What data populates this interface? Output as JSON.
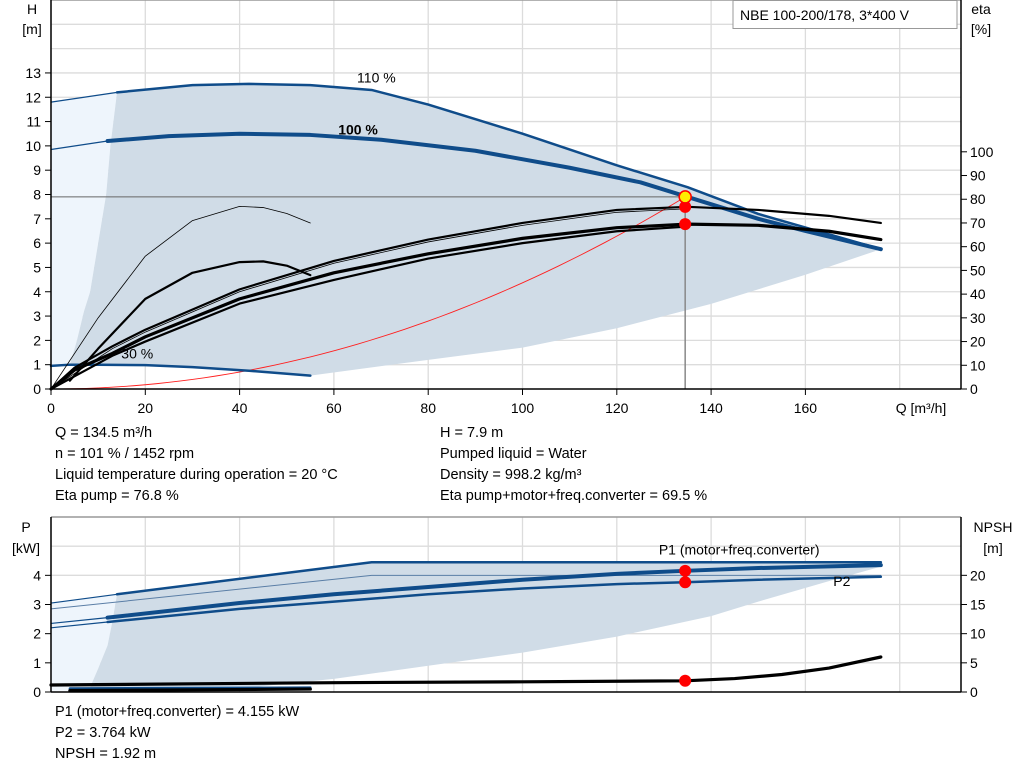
{
  "title": "NBE 100-200/178, 3*400 V",
  "colors": {
    "curve_blue": "#0f4c8a",
    "envelope": "#d0dce7",
    "envelope_light": "#eef5fc",
    "system_curve": "#ff2020",
    "duty_point": "#ffee00",
    "marker": "#ff0000"
  },
  "chart_data": [
    {
      "type": "line",
      "title": "",
      "xlabel": "Q [m³/h]",
      "ylabel": "H\n[m]",
      "ylabel_line1": "H",
      "ylabel_line2": "[m]",
      "y2label_line1": "eta",
      "y2label_line2": "[%]",
      "xlim": [
        0,
        193
      ],
      "ylim": [
        0,
        16
      ],
      "y2lim": [
        0,
        164
      ],
      "xticks": [
        0,
        20,
        40,
        60,
        80,
        100,
        120,
        140,
        160
      ],
      "yticks": [
        0,
        1,
        2,
        3,
        4,
        5,
        6,
        7,
        8,
        9,
        10,
        11,
        12,
        13
      ],
      "y2ticks": [
        0,
        10,
        20,
        30,
        40,
        50,
        60,
        70,
        80,
        90,
        100
      ],
      "grid": true,
      "annotations": [
        {
          "text": "110 %",
          "q": 70,
          "h": 12.45
        },
        {
          "text": "100 %",
          "q": 66,
          "h": 10.3
        },
        {
          "text": "30 %",
          "q": 20,
          "h": 1.1
        }
      ],
      "envelope_dark": [
        [
          14,
          12.2
        ],
        [
          30,
          12.5
        ],
        [
          42,
          12.55
        ],
        [
          55,
          12.5
        ],
        [
          68,
          12.3
        ],
        [
          80,
          11.7
        ],
        [
          100,
          10.5
        ],
        [
          120,
          9.2
        ],
        [
          135,
          8.3
        ],
        [
          150,
          7.2
        ],
        [
          176,
          5.75
        ],
        [
          160,
          4.7
        ],
        [
          140,
          3.5
        ],
        [
          120,
          2.5
        ],
        [
          100,
          1.7
        ],
        [
          80,
          1.2
        ],
        [
          55,
          0.55
        ],
        [
          42,
          0.75
        ],
        [
          30,
          0.9
        ],
        [
          20,
          0.98
        ],
        [
          10,
          1.0
        ],
        [
          4,
          1.0
        ],
        [
          5.5,
          2
        ],
        [
          7,
          3.2
        ],
        [
          8.3,
          4
        ],
        [
          10,
          6
        ],
        [
          11.7,
          8
        ],
        [
          12.6,
          10
        ],
        [
          14,
          12.2
        ]
      ],
      "envelope_light": [
        [
          0,
          11.8
        ],
        [
          14,
          12.2
        ],
        [
          12.6,
          10
        ],
        [
          11.7,
          8
        ],
        [
          10,
          6
        ],
        [
          8.3,
          4
        ],
        [
          7,
          3.2
        ],
        [
          5.5,
          2
        ],
        [
          4,
          1.0
        ],
        [
          0,
          0.95
        ]
      ],
      "series": [
        {
          "axis": "H",
          "style": "blue-thin",
          "points": [
            [
              0,
              11.8
            ],
            [
              14,
              12.2
            ]
          ]
        },
        {
          "axis": "H",
          "style": "blue-mid",
          "points": [
            [
              14,
              12.2
            ],
            [
              30,
              12.5
            ],
            [
              42,
              12.55
            ],
            [
              55,
              12.5
            ],
            [
              68,
              12.3
            ],
            [
              80,
              11.7
            ],
            [
              100,
              10.5
            ],
            [
              120,
              9.2
            ],
            [
              135,
              8.3
            ],
            [
              150,
              7.2
            ],
            [
              176,
              5.75
            ]
          ]
        },
        {
          "axis": "H",
          "style": "blue-thin",
          "points": [
            [
              0,
              9.85
            ],
            [
              12,
              10.2
            ]
          ]
        },
        {
          "axis": "H",
          "style": "blue-thick",
          "points": [
            [
              12,
              10.2
            ],
            [
              25,
              10.4
            ],
            [
              40,
              10.5
            ],
            [
              55,
              10.45
            ],
            [
              70,
              10.25
            ],
            [
              90,
              9.8
            ],
            [
              110,
              9.1
            ],
            [
              125,
              8.5
            ],
            [
              135,
              7.9
            ],
            [
              150,
              7.0
            ],
            [
              160,
              6.5
            ],
            [
              176,
              5.75
            ]
          ]
        },
        {
          "axis": "H",
          "style": "blue-mid",
          "points": [
            [
              0,
              0.95
            ],
            [
              4,
              1.0
            ],
            [
              10,
              1.0
            ],
            [
              20,
              0.98
            ],
            [
              30,
              0.9
            ],
            [
              42,
              0.75
            ],
            [
              55,
              0.55
            ]
          ]
        },
        {
          "axis": "eta",
          "style": "black-mid",
          "points": [
            [
              0,
              0
            ],
            [
              5,
              9
            ],
            [
              13,
              18
            ],
            [
              20,
              25
            ],
            [
              40,
              42
            ],
            [
              60,
              54
            ],
            [
              80,
              63
            ],
            [
              100,
              70
            ],
            [
              120,
              75.5
            ],
            [
              135,
              76.8
            ],
            [
              150,
              75.5
            ],
            [
              165,
              73
            ],
            [
              176,
              70
            ]
          ]
        },
        {
          "axis": "eta",
          "style": "black-hair",
          "points": [
            [
              0,
              0
            ],
            [
              13,
              17
            ],
            [
              20,
              24
            ],
            [
              40,
              41
            ],
            [
              60,
              53
            ],
            [
              80,
              62
            ],
            [
              100,
              69
            ],
            [
              120,
              74.5
            ],
            [
              135,
              76
            ]
          ]
        },
        {
          "axis": "eta",
          "style": "black-thick",
          "points": [
            [
              0,
              0
            ],
            [
              5,
              8
            ],
            [
              13,
              15
            ],
            [
              20,
              22
            ],
            [
              40,
              38
            ],
            [
              60,
              49
            ],
            [
              80,
              57
            ],
            [
              100,
              63.5
            ],
            [
              120,
              68
            ],
            [
              135,
              69.5
            ],
            [
              150,
              69
            ],
            [
              165,
              66.5
            ],
            [
              176,
              63
            ]
          ]
        },
        {
          "axis": "eta",
          "style": "black-mid",
          "points": [
            [
              0,
              0
            ],
            [
              13,
              14
            ],
            [
              20,
              20
            ],
            [
              40,
              36
            ],
            [
              60,
              46
            ],
            [
              80,
              55
            ],
            [
              100,
              61.5
            ],
            [
              120,
              66.5
            ],
            [
              135,
              68.5
            ]
          ]
        },
        {
          "axis": "eta",
          "style": "black-mid",
          "points": [
            [
              4,
              3.5
            ],
            [
              10,
              17
            ],
            [
              20,
              38
            ],
            [
              30,
              49
            ],
            [
              40,
              53.5
            ],
            [
              45,
              53.8
            ],
            [
              50,
              52
            ],
            [
              55,
              48
            ]
          ]
        },
        {
          "axis": "eta",
          "style": "black-hair",
          "points": [
            [
              0,
              0
            ],
            [
              10,
              30
            ],
            [
              20,
              56
            ],
            [
              30,
              71
            ],
            [
              40,
              77
            ],
            [
              45,
              76.5
            ],
            [
              50,
              74
            ],
            [
              55,
              70
            ]
          ]
        }
      ],
      "system_curve": {
        "axis": "H",
        "coefficient_note": "",
        "q_end": 134.5,
        "h_end": 7.9
      },
      "duty_point": {
        "q": 134.5,
        "h": 7.9
      },
      "markers": [
        {
          "axis": "eta",
          "q": 134.5,
          "value": 76.8
        },
        {
          "axis": "eta",
          "q": 134.5,
          "value": 69.5
        }
      ]
    },
    {
      "type": "line",
      "title": "",
      "ylabel_line1": "P",
      "ylabel_line2": "[kW]",
      "y2label_line1": "NPSH",
      "y2label_line2": "[m]",
      "xlim": [
        0,
        193
      ],
      "ylim": [
        0,
        6
      ],
      "y2lim": [
        0,
        30
      ],
      "xticks": [
        0,
        20,
        40,
        60,
        80,
        100,
        120,
        140,
        160
      ],
      "yticks": [
        0,
        1,
        2,
        3,
        4
      ],
      "y2ticks": [
        0,
        5,
        10,
        15,
        20
      ],
      "grid": true,
      "annotations": [
        {
          "text": "P1 (motor+freq.converter)",
          "q": 134,
          "p": 4.58
        },
        {
          "text": "P2",
          "q": 171,
          "p": 3.5
        }
      ],
      "envelope_dark": [
        [
          14,
          3.35
        ],
        [
          68,
          4.45
        ],
        [
          176,
          4.45
        ],
        [
          176,
          4.3
        ],
        [
          165,
          3.8
        ],
        [
          150,
          3.1
        ],
        [
          140,
          2.6
        ],
        [
          120,
          1.9
        ],
        [
          100,
          1.35
        ],
        [
          80,
          0.9
        ],
        [
          60,
          0.45
        ],
        [
          40,
          0.12
        ],
        [
          20,
          0.05
        ],
        [
          8,
          0.05
        ],
        [
          10,
          0.8
        ],
        [
          12,
          1.6
        ],
        [
          13,
          2.4
        ],
        [
          14,
          3.35
        ]
      ],
      "envelope_light": [
        [
          0,
          3.05
        ],
        [
          14,
          3.35
        ],
        [
          13,
          2.4
        ],
        [
          12,
          1.6
        ],
        [
          10,
          0.8
        ],
        [
          8,
          0.05
        ],
        [
          0,
          0.05
        ]
      ],
      "series": [
        {
          "axis": "P",
          "style": "blue-thin",
          "points": [
            [
              0,
              3.05
            ],
            [
              14,
              3.35
            ]
          ]
        },
        {
          "axis": "P",
          "style": "blue-mid",
          "points": [
            [
              14,
              3.35
            ],
            [
              68,
              4.45
            ],
            [
              176,
              4.45
            ]
          ]
        },
        {
          "axis": "P",
          "style": "blue-hair",
          "points": [
            [
              0,
              2.85
            ],
            [
              68,
              4.0
            ],
            [
              176,
              4.0
            ]
          ]
        },
        {
          "axis": "P",
          "style": "blue-thin",
          "points": [
            [
              0,
              2.35
            ],
            [
              12,
              2.55
            ]
          ]
        },
        {
          "axis": "P",
          "style": "blue-thick",
          "name": "P1 (motor+freq.converter)",
          "points": [
            [
              12,
              2.55
            ],
            [
              40,
              3.05
            ],
            [
              60,
              3.35
            ],
            [
              80,
              3.6
            ],
            [
              100,
              3.85
            ],
            [
              120,
              4.05
            ],
            [
              134.5,
              4.155
            ],
            [
              150,
              4.25
            ],
            [
              176,
              4.35
            ]
          ]
        },
        {
          "axis": "P",
          "style": "blue-thin",
          "points": [
            [
              0,
              2.2
            ],
            [
              12,
              2.4
            ]
          ]
        },
        {
          "axis": "P",
          "style": "blue-mid",
          "name": "P2",
          "points": [
            [
              12,
              2.4
            ],
            [
              40,
              2.85
            ],
            [
              60,
              3.1
            ],
            [
              80,
              3.35
            ],
            [
              100,
              3.55
            ],
            [
              120,
              3.7
            ],
            [
              134.5,
              3.764
            ],
            [
              150,
              3.85
            ],
            [
              176,
              3.95
            ]
          ]
        },
        {
          "axis": "P",
          "style": "blue-mid",
          "points": [
            [
              4,
              0.12
            ],
            [
              55,
              0.15
            ]
          ]
        },
        {
          "axis": "P",
          "style": "black-thin",
          "points": [
            [
              0,
              0.25
            ],
            [
              55,
              0.3
            ]
          ]
        },
        {
          "axis": "P",
          "style": "black-thick",
          "points": [
            [
              4,
              0.05
            ],
            [
              55,
              0.1
            ]
          ]
        },
        {
          "axis": "NPSH",
          "style": "black-thick",
          "points": [
            [
              0,
              1.2
            ],
            [
              30,
              1.4
            ],
            [
              60,
              1.6
            ],
            [
              100,
              1.75
            ],
            [
              134.5,
              1.92
            ],
            [
              145,
              2.3
            ],
            [
              155,
              3.0
            ],
            [
              165,
              4.1
            ],
            [
              176,
              6.0
            ]
          ]
        }
      ],
      "markers": [
        {
          "axis": "P",
          "q": 134.5,
          "value": 4.155
        },
        {
          "axis": "P",
          "q": 134.5,
          "value": 3.764
        },
        {
          "axis": "NPSH",
          "q": 134.5,
          "value": 1.92
        }
      ]
    }
  ],
  "info": {
    "q": "Q = 134.5 m³/h",
    "n": "n = 101 % / 1452 rpm",
    "temp": "Liquid temperature during operation = 20 °C",
    "eta_pump": "Eta pump = 76.8 %",
    "h": "H = 7.9 m",
    "liquid": "Pumped liquid = Water",
    "density": "Density = 998.2 kg/m³",
    "eta_total": "Eta pump+motor+freq.converter = 69.5 %",
    "p1": "P1 (motor+freq.converter) = 4.155 kW",
    "p2": "P2 = 3.764 kW",
    "npsh": "NPSH = 1.92 m"
  }
}
